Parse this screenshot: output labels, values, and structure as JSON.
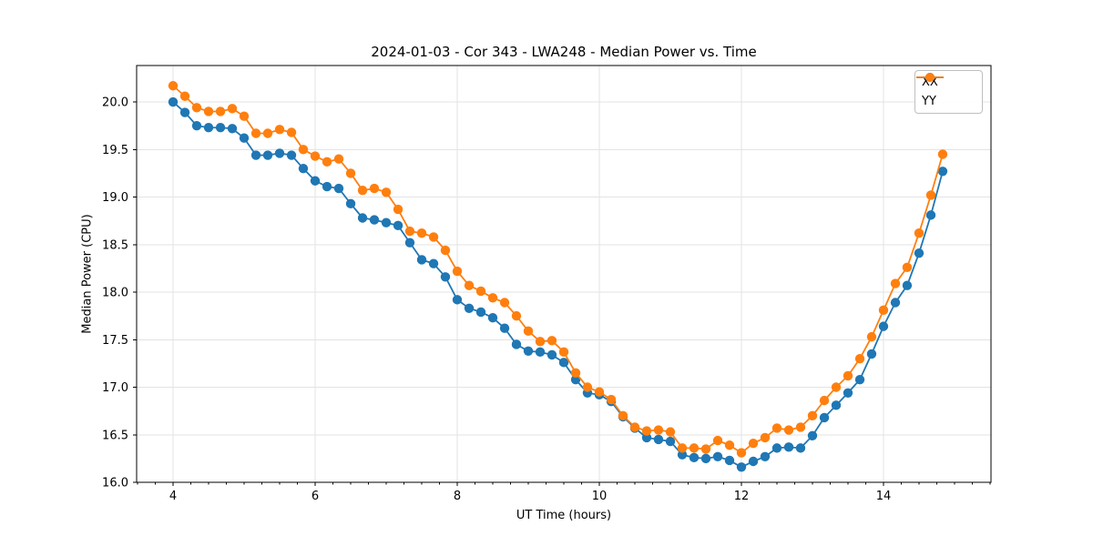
{
  "chart": {
    "title": "2024-01-03 - Cor 343 - LWA248 - Median Power vs. Time",
    "xlabel": "UT Time (hours)",
    "ylabel": "Median Power (CPU)"
  },
  "legend": {
    "items": [
      {
        "label": "XX",
        "color": "#1f77b4"
      },
      {
        "label": "YY",
        "color": "#ff7f0e"
      }
    ]
  },
  "chart_data": {
    "type": "line",
    "title": "2024-01-03 - Cor 343 - LWA248 - Median Power vs. Time",
    "xlabel": "UT Time (hours)",
    "ylabel": "Median Power (CPU)",
    "xlim": [
      3.487,
      15.513
    ],
    "ylim": [
      16.0,
      20.383
    ],
    "grid": true,
    "legend_position": "upper right",
    "xticks": {
      "values": [
        4,
        6,
        8,
        10,
        12,
        14
      ],
      "labels": [
        "4",
        "6",
        "8",
        "10",
        "12",
        "14"
      ],
      "minor_step": 0.25
    },
    "yticks": {
      "values": [
        16.0,
        16.5,
        17.0,
        17.5,
        18.0,
        18.5,
        19.0,
        19.5,
        20.0
      ],
      "labels": [
        "16.0",
        "16.5",
        "17.0",
        "17.5",
        "18.0",
        "18.5",
        "19.0",
        "19.5",
        "20.0"
      ]
    },
    "colors": {
      "XX": "#1f77b4",
      "YY": "#ff7f0e",
      "grid": "#e3e3e3",
      "spine": "#000000"
    },
    "x": [
      4.0,
      4.167,
      4.333,
      4.5,
      4.667,
      4.833,
      5.0,
      5.167,
      5.333,
      5.5,
      5.667,
      5.833,
      6.0,
      6.167,
      6.333,
      6.5,
      6.667,
      6.833,
      7.0,
      7.167,
      7.333,
      7.5,
      7.667,
      7.833,
      8.0,
      8.167,
      8.333,
      8.5,
      8.667,
      8.833,
      9.0,
      9.167,
      9.333,
      9.5,
      9.667,
      9.833,
      10.0,
      10.167,
      10.333,
      10.5,
      10.667,
      10.833,
      11.0,
      11.167,
      11.333,
      11.5,
      11.667,
      11.833,
      12.0,
      12.167,
      12.333,
      12.5,
      12.667,
      12.833,
      13.0,
      13.167,
      13.333,
      13.5,
      13.667,
      13.833,
      14.0,
      14.167,
      14.333,
      14.5,
      14.667,
      14.833
    ],
    "series": [
      {
        "name": "XX",
        "color": "#1f77b4",
        "values": [
          20.0,
          19.89,
          19.75,
          19.73,
          19.73,
          19.72,
          19.62,
          19.44,
          19.44,
          19.46,
          19.44,
          19.3,
          19.17,
          19.11,
          19.09,
          18.93,
          18.78,
          18.76,
          18.73,
          18.7,
          18.52,
          18.34,
          18.3,
          18.16,
          17.92,
          17.83,
          17.79,
          17.73,
          17.62,
          17.45,
          17.38,
          17.37,
          17.34,
          17.26,
          17.08,
          16.94,
          16.92,
          16.85,
          16.69,
          16.57,
          16.47,
          16.45,
          16.43,
          16.29,
          16.26,
          16.25,
          16.27,
          16.23,
          16.16,
          16.22,
          16.27,
          16.36,
          16.37,
          16.36,
          16.49,
          16.68,
          16.81,
          16.94,
          17.08,
          17.35,
          17.64,
          17.89,
          18.07,
          18.41,
          18.81,
          19.27
        ]
      },
      {
        "name": "YY",
        "color": "#ff7f0e",
        "values": [
          20.17,
          20.06,
          19.94,
          19.9,
          19.9,
          19.93,
          19.85,
          19.67,
          19.67,
          19.71,
          19.68,
          19.5,
          19.43,
          19.37,
          19.4,
          19.25,
          19.07,
          19.09,
          19.05,
          18.87,
          18.64,
          18.62,
          18.58,
          18.44,
          18.22,
          18.07,
          18.01,
          17.94,
          17.89,
          17.75,
          17.59,
          17.48,
          17.49,
          17.37,
          17.15,
          17.0,
          16.95,
          16.87,
          16.7,
          16.58,
          16.54,
          16.55,
          16.53,
          16.36,
          16.36,
          16.35,
          16.44,
          16.39,
          16.31,
          16.41,
          16.47,
          16.57,
          16.55,
          16.58,
          16.7,
          16.86,
          17.0,
          17.12,
          17.3,
          17.53,
          17.81,
          18.09,
          18.26,
          18.62,
          19.02,
          19.45
        ]
      }
    ]
  }
}
